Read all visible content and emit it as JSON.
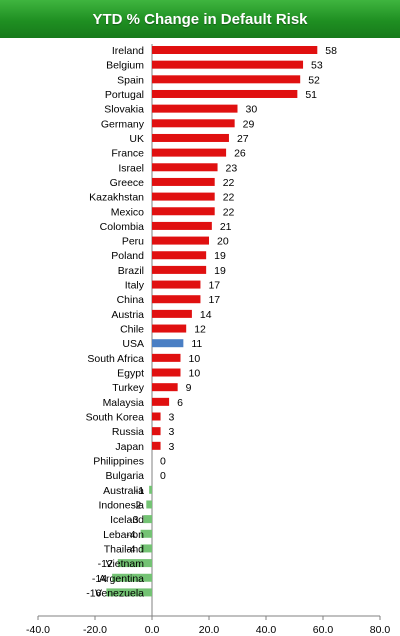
{
  "title": "YTD % Change in Default Risk",
  "colors": {
    "title_bg": "#22922a",
    "positive": "#e01010",
    "negative": "#74c374",
    "highlight": "#4a7fc4"
  },
  "chart_data": {
    "type": "bar",
    "orientation": "horizontal",
    "title": "YTD % Change in Default Risk",
    "categories": [
      "Ireland",
      "Belgium",
      "Spain",
      "Portugal",
      "Slovakia",
      "Germany",
      "UK",
      "France",
      "Israel",
      "Greece",
      "Kazakhstan",
      "Mexico",
      "Colombia",
      "Peru",
      "Poland",
      "Brazil",
      "Italy",
      "China",
      "Austria",
      "Chile",
      "USA",
      "South Africa",
      "Egypt",
      "Turkey",
      "Malaysia",
      "South Korea",
      "Russia",
      "Japan",
      "Philippines",
      "Bulgaria",
      "Australia",
      "Indonesia",
      "Iceland",
      "Lebanon",
      "Thailand",
      "Vietnam",
      "Argentina",
      "Venezuela"
    ],
    "values": [
      58,
      53,
      52,
      51,
      30,
      29,
      27,
      26,
      23,
      22,
      22,
      22,
      21,
      20,
      19,
      19,
      17,
      17,
      14,
      12,
      11,
      10,
      10,
      9,
      6,
      3,
      3,
      3,
      0,
      0,
      -1,
      -2,
      -3,
      -4,
      -4,
      -12,
      -14,
      -16
    ],
    "highlight_category": "USA",
    "xlim": [
      -40,
      80
    ],
    "xticks": [
      "-40.0",
      "-20.0",
      "0.0",
      "20.0",
      "40.0",
      "60.0",
      "80.0"
    ],
    "grid": false,
    "legend": "none"
  }
}
